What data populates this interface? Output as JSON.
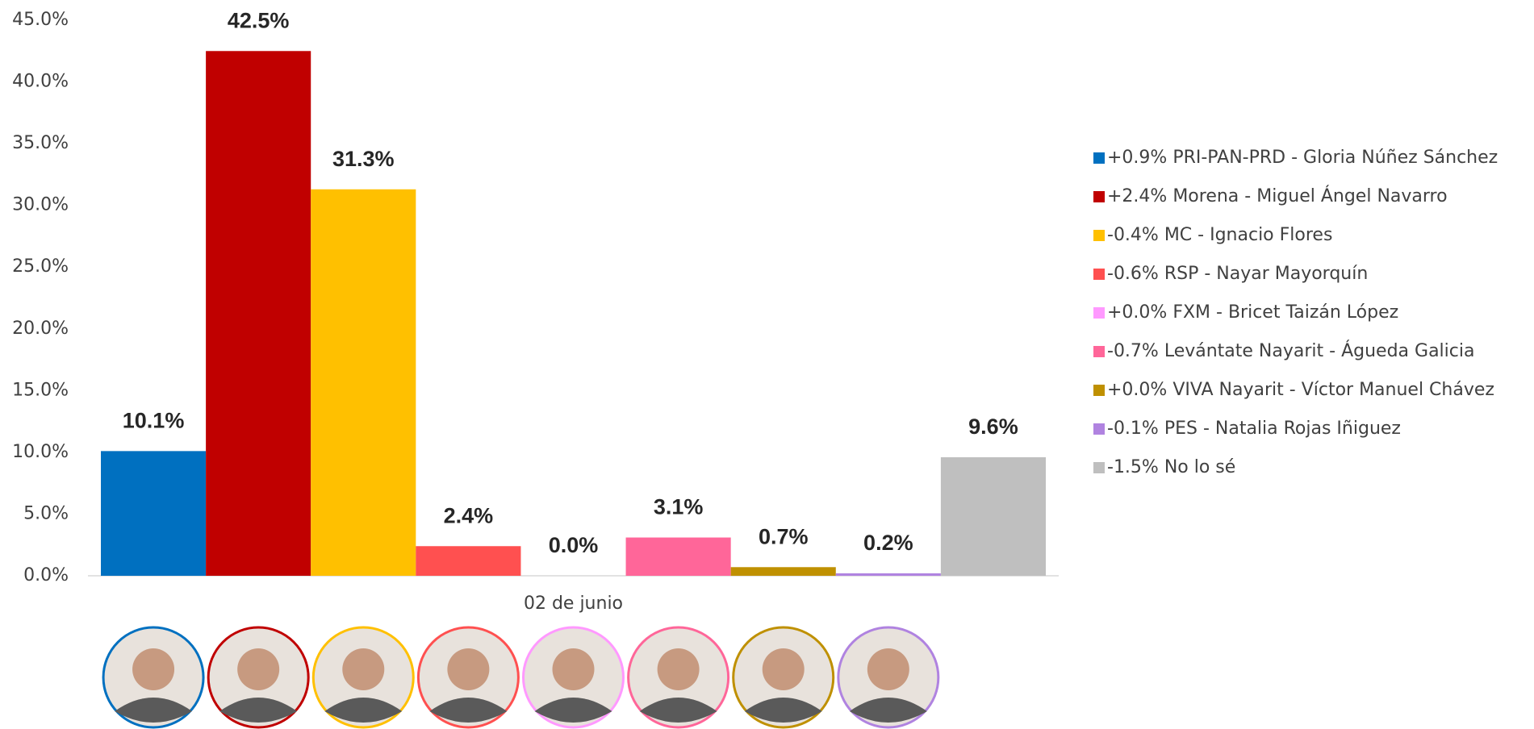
{
  "chart_data": {
    "type": "bar",
    "categories": [
      "02 de junio"
    ],
    "series": [
      {
        "name": "+0.9% PRI-PAN-PRD - Gloria Núñez Sánchez",
        "color": "#0070c0",
        "values": [
          10.1
        ],
        "value_labels": [
          "10.1%"
        ]
      },
      {
        "name": "+2.4% Morena - Miguel Ángel Navarro",
        "color": "#c00000",
        "values": [
          42.5
        ],
        "value_labels": [
          "42.5%"
        ]
      },
      {
        "name": "-0.4% MC - Ignacio Flores",
        "color": "#ffc000",
        "values": [
          31.3
        ],
        "value_labels": [
          "31.3%"
        ]
      },
      {
        "name": "-0.6% RSP - Nayar Mayorquín",
        "color": "#ff5050",
        "values": [
          2.4
        ],
        "value_labels": [
          "2.4%"
        ]
      },
      {
        "name": "+0.0% FXM - Bricet Taizán López",
        "color": "#ff99ff",
        "values": [
          0.0
        ],
        "value_labels": [
          "0.0%"
        ]
      },
      {
        "name": "-0.7% Levántate Nayarit - Águeda Galicia",
        "color": "#ff6699",
        "values": [
          3.1
        ],
        "value_labels": [
          "3.1%"
        ]
      },
      {
        "name": "+0.0% VIVA Nayarit - Víctor Manuel Chávez",
        "color": "#bf9000",
        "values": [
          0.7
        ],
        "value_labels": [
          "0.7%"
        ]
      },
      {
        "name": "-0.1% PES - Natalia Rojas Iñiguez",
        "color": "#b083e0",
        "values": [
          0.2
        ],
        "value_labels": [
          "0.2%"
        ]
      },
      {
        "name": "-1.5% No lo sé",
        "color": "#bfbfbf",
        "values": [
          9.6
        ],
        "value_labels": [
          "9.6%"
        ]
      }
    ],
    "ylim": [
      0,
      45
    ],
    "yticks": [
      {
        "value": 0,
        "label": "0.0%"
      },
      {
        "value": 5,
        "label": "5.0%"
      },
      {
        "value": 10,
        "label": "10.0%"
      },
      {
        "value": 15,
        "label": "15.0%"
      },
      {
        "value": 20,
        "label": "20.0%"
      },
      {
        "value": 25,
        "label": "25.0%"
      },
      {
        "value": 30,
        "label": "30.0%"
      },
      {
        "value": 35,
        "label": "35.0%"
      },
      {
        "value": 40,
        "label": "40.0%"
      },
      {
        "value": 45,
        "label": "45.0%"
      }
    ],
    "grid": false,
    "legend": "right"
  }
}
